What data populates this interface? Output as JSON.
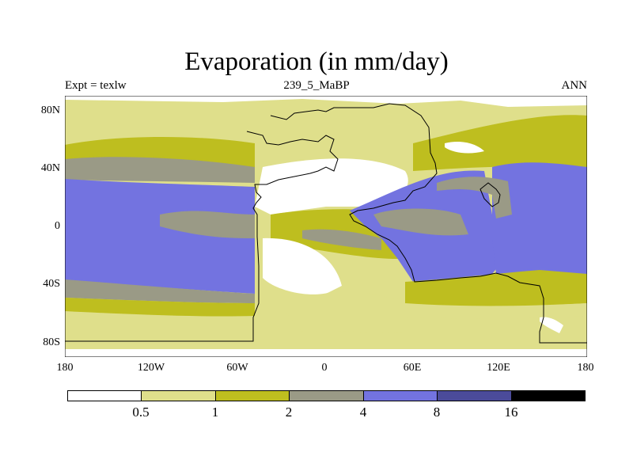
{
  "title": "Evaporation (in mm/day)",
  "subtitle_left": "Expt = texlw",
  "subtitle_center": "239_5_MaBP",
  "subtitle_right": "ANN",
  "y_axis_labels": [
    "80N",
    "40N",
    "0",
    "40S",
    "80S"
  ],
  "x_axis_labels": [
    "180",
    "120W",
    "60W",
    "0",
    "60E",
    "120E",
    "180"
  ],
  "colorbar": {
    "colors": [
      "#ffffff",
      "#dfdf8b",
      "#bebe1f",
      "#9a9a86",
      "#7373e0",
      "#4b4b9a",
      "#000000"
    ],
    "labels": [
      "0.5",
      "1",
      "2",
      "4",
      "8",
      "16"
    ]
  }
}
